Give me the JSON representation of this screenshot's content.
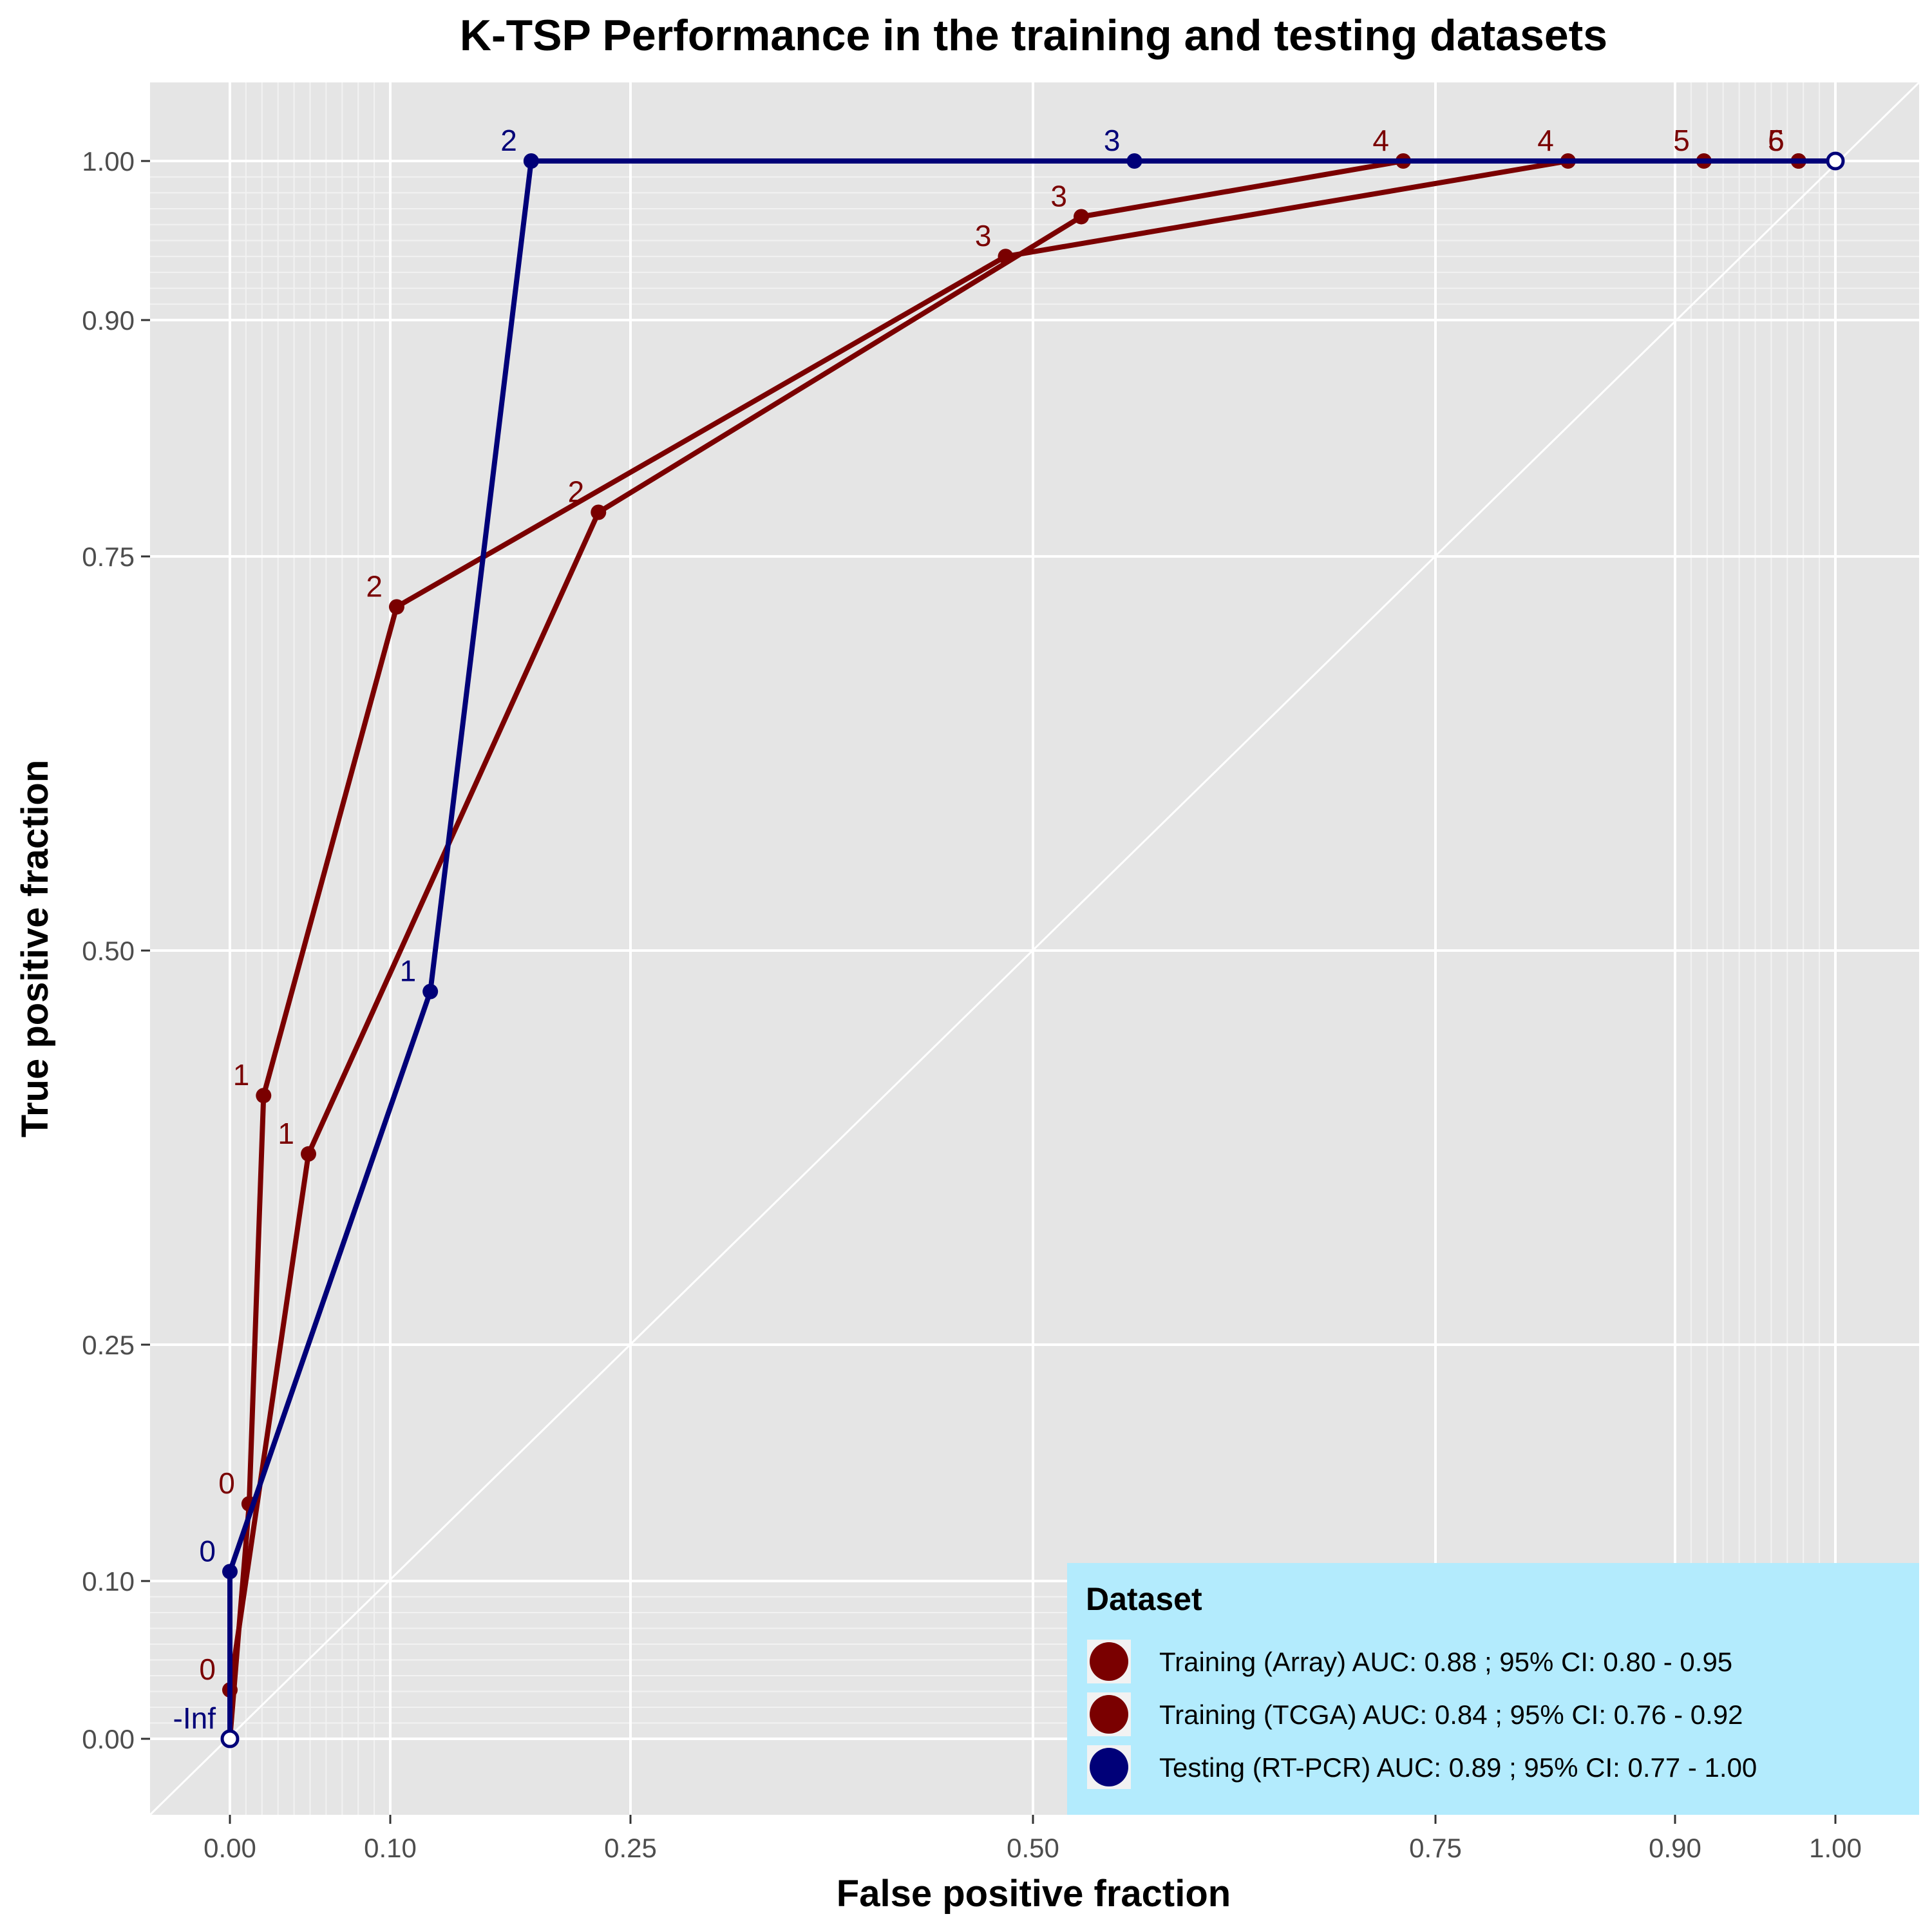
{
  "chart_data": {
    "type": "line",
    "title": "K-TSP Performance in the training and testing datasets",
    "xlabel": "False positive fraction",
    "ylabel": "True positive fraction",
    "scale": "probit",
    "xlim": [
      -0.05,
      1.05
    ],
    "ylim": [
      -0.05,
      1.05
    ],
    "x_ticks": [
      0.0,
      0.1,
      0.25,
      0.5,
      0.75,
      0.9,
      1.0
    ],
    "x_tick_labels": [
      "0.00",
      "0.10",
      "0.25",
      "0.50",
      "0.75",
      "0.90",
      "1.00"
    ],
    "y_ticks": [
      0.0,
      0.1,
      0.25,
      0.5,
      0.75,
      0.9,
      1.0
    ],
    "y_tick_labels": [
      "0.00",
      "0.10",
      "0.25",
      "0.50",
      "0.75",
      "0.90",
      "1.00"
    ],
    "grid": true,
    "diagonal_reference": true,
    "legend": {
      "title": "Dataset",
      "placement": "bottom-right"
    },
    "series": [
      {
        "name": "Training (Array) AUC:  0.88 ; 95% CI:  0.80 - 0.95",
        "color": "#7a0000",
        "points": [
          {
            "x": 0.0,
            "y": 0.0,
            "label": ""
          },
          {
            "x": 0.0,
            "y": 0.031,
            "label": "0"
          },
          {
            "x": 0.049,
            "y": 0.371,
            "label": "1"
          },
          {
            "x": 0.23,
            "y": 0.778,
            "label": "2"
          },
          {
            "x": 0.53,
            "y": 0.965,
            "label": "3"
          },
          {
            "x": 0.73,
            "y": 1.0,
            "label": "4"
          },
          {
            "x": 0.918,
            "y": 1.0,
            "label": "5"
          },
          {
            "x": 0.977,
            "y": 1.0,
            "label": "6"
          },
          {
            "x": 1.0,
            "y": 1.0,
            "label": ""
          }
        ]
      },
      {
        "name": "Training (TCGA) AUC:  0.84 ; 95% CI:  0.76 - 0.92",
        "color": "#7a0000",
        "points": [
          {
            "x": 0.0,
            "y": 0.0,
            "label": ""
          },
          {
            "x": 0.012,
            "y": 0.149,
            "label": "0"
          },
          {
            "x": 0.021,
            "y": 0.408,
            "label": "1"
          },
          {
            "x": 0.104,
            "y": 0.718,
            "label": "2"
          },
          {
            "x": 0.483,
            "y": 0.94,
            "label": "3"
          },
          {
            "x": 0.833,
            "y": 1.0,
            "label": "4"
          },
          {
            "x": 0.977,
            "y": 1.0,
            "label": "5"
          },
          {
            "x": 1.0,
            "y": 1.0,
            "label": ""
          }
        ]
      },
      {
        "name": "Testing (RT-PCR) AUC:  0.89 ; 95% CI:  0.77 - 1.00",
        "color": "#000078",
        "points": [
          {
            "x": 0.0,
            "y": 0.0,
            "label": "-Inf"
          },
          {
            "x": 0.0,
            "y": 0.106,
            "label": "0"
          },
          {
            "x": 0.125,
            "y": 0.474,
            "label": "1"
          },
          {
            "x": 0.188,
            "y": 1.0,
            "label": "2"
          },
          {
            "x": 0.563,
            "y": 1.0,
            "label": "3"
          },
          {
            "x": 1.0,
            "y": 1.0,
            "label": ""
          }
        ]
      }
    ]
  }
}
